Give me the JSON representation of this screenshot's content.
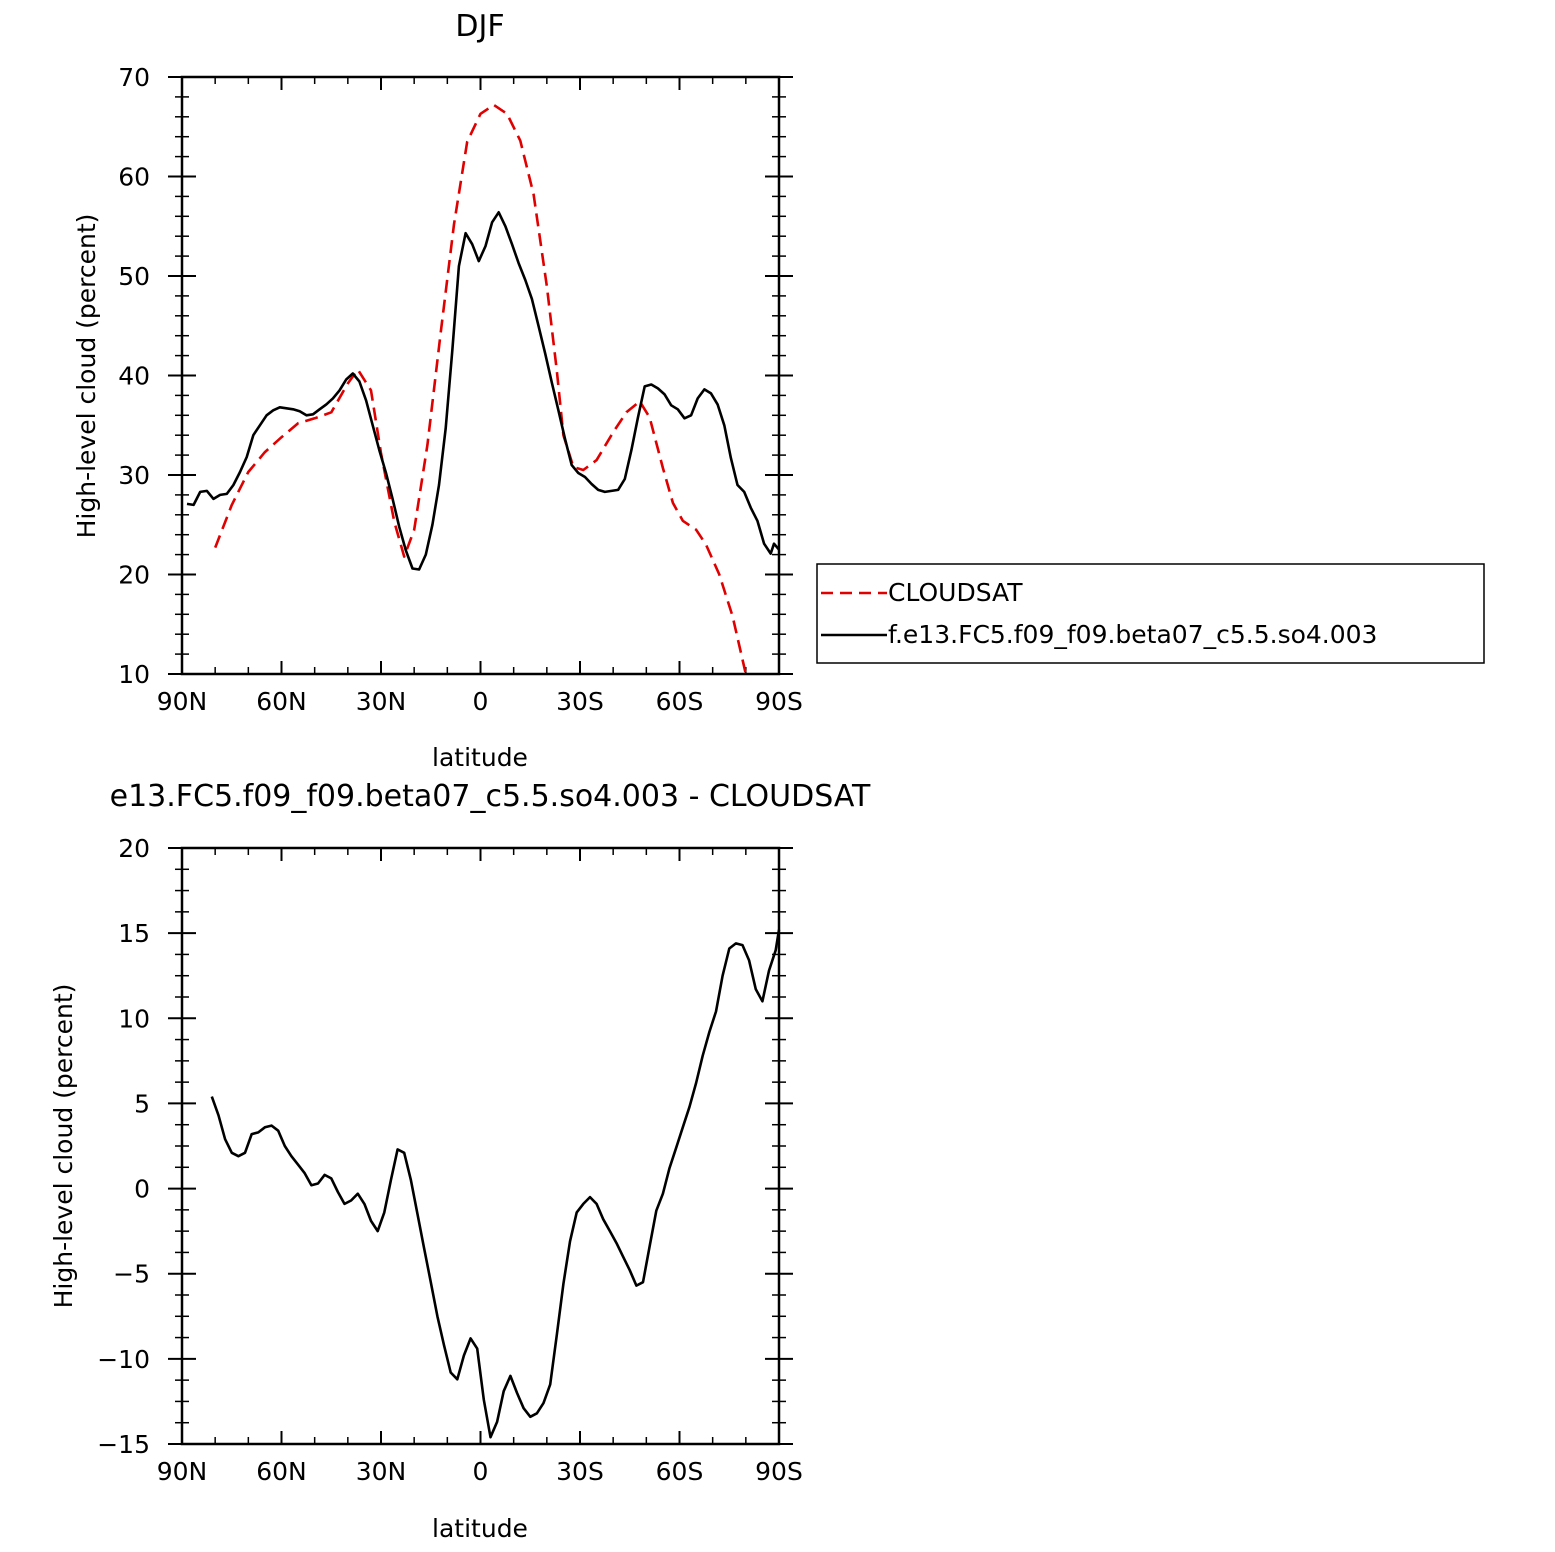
{
  "chart_data": [
    {
      "type": "line",
      "title": "DJF",
      "xlabel": "latitude",
      "ylabel": "High-level cloud (percent)",
      "xlim": [
        -90,
        90
      ],
      "ylim": [
        10,
        70
      ],
      "x_ticks": [
        -90,
        -60,
        -30,
        0,
        30,
        60,
        90
      ],
      "x_tick_labels": [
        "90N",
        "60N",
        "30N",
        "0",
        "30S",
        "60S",
        "90S"
      ],
      "y_ticks": [
        10,
        20,
        30,
        40,
        50,
        60,
        70
      ],
      "y_tick_labels": [
        "10",
        "20",
        "30",
        "40",
        "50",
        "60",
        "70"
      ],
      "grid": false,
      "legend_position": "right",
      "series": [
        {
          "name": "CLOUDSAT",
          "color": "#e00000",
          "dash": "dashed",
          "points": [
            [
              -80,
              22.7
            ],
            [
              -75,
              27
            ],
            [
              -70,
              30.3
            ],
            [
              -65,
              32.3
            ],
            [
              -60,
              33.8
            ],
            [
              -55,
              35.2
            ],
            [
              -50,
              35.7
            ],
            [
              -45,
              36.3
            ],
            [
              -40,
              39.2
            ],
            [
              -37,
              40.6
            ],
            [
              -33,
              38.5
            ],
            [
              -30,
              32.2
            ],
            [
              -26,
              25.3
            ],
            [
              -23,
              21.8
            ],
            [
              -20,
              24.5
            ],
            [
              -16,
              33
            ],
            [
              -12,
              44.3
            ],
            [
              -8,
              55.2
            ],
            [
              -4,
              63.5
            ],
            [
              0,
              66.3
            ],
            [
              4,
              67.2
            ],
            [
              8,
              66.3
            ],
            [
              12,
              63.6
            ],
            [
              16,
              58.2
            ],
            [
              20,
              49
            ],
            [
              23,
              40.5
            ],
            [
              25,
              34
            ],
            [
              28,
              30.8
            ],
            [
              31,
              30.5
            ],
            [
              35,
              31.5
            ],
            [
              40,
              34.3
            ],
            [
              44,
              36.3
            ],
            [
              48,
              37.4
            ],
            [
              51,
              35.8
            ],
            [
              55,
              30.7
            ],
            [
              58,
              27.2
            ],
            [
              61,
              25.4
            ],
            [
              65,
              24.5
            ],
            [
              68,
              23
            ],
            [
              72,
              20
            ],
            [
              76,
              15.8
            ],
            [
              80,
              10
            ]
          ]
        },
        {
          "name": "f.e13.FC5.f09_f09.beta07_c5.5.so4.003",
          "color": "#000000",
          "dash": "solid",
          "points": [
            [
              -88.5,
              27.1
            ],
            [
              -86.5,
              27
            ],
            [
              -84.5,
              28.3
            ],
            [
              -82.5,
              28.4
            ],
            [
              -80.5,
              27.6
            ],
            [
              -78.5,
              28
            ],
            [
              -76.5,
              28.1
            ],
            [
              -74.5,
              29
            ],
            [
              -72.5,
              30.3
            ],
            [
              -70.5,
              31.8
            ],
            [
              -68.5,
              34
            ],
            [
              -66.5,
              35
            ],
            [
              -64.5,
              36
            ],
            [
              -62.5,
              36.5
            ],
            [
              -60.5,
              36.8
            ],
            [
              -58.5,
              36.7
            ],
            [
              -56.5,
              36.6
            ],
            [
              -54.5,
              36.4
            ],
            [
              -52.5,
              36
            ],
            [
              -50.5,
              36.1
            ],
            [
              -48.5,
              36.6
            ],
            [
              -46.5,
              37.1
            ],
            [
              -44.5,
              37.7
            ],
            [
              -42.5,
              38.5
            ],
            [
              -40.5,
              39.6
            ],
            [
              -38.5,
              40.2
            ],
            [
              -36.5,
              39.4
            ],
            [
              -34.5,
              37.5
            ],
            [
              -32.5,
              35
            ],
            [
              -30.5,
              32.5
            ],
            [
              -28.5,
              30.2
            ],
            [
              -26.5,
              27.6
            ],
            [
              -24.5,
              24.8
            ],
            [
              -22.5,
              22.4
            ],
            [
              -20.5,
              20.6
            ],
            [
              -18.5,
              20.5
            ],
            [
              -16.5,
              22
            ],
            [
              -14.5,
              25
            ],
            [
              -12.5,
              29
            ],
            [
              -10.5,
              34.7
            ],
            [
              -8.5,
              42.5
            ],
            [
              -6.5,
              51
            ],
            [
              -4.5,
              54.3
            ],
            [
              -2.5,
              53.2
            ],
            [
              -0.5,
              51.5
            ],
            [
              1.5,
              53
            ],
            [
              3.5,
              55.4
            ],
            [
              5.5,
              56.4
            ],
            [
              7.5,
              55
            ],
            [
              9.5,
              53.2
            ],
            [
              11.5,
              51.3
            ],
            [
              13.5,
              49.6
            ],
            [
              15.5,
              47.7
            ],
            [
              17.5,
              45
            ],
            [
              19.5,
              42.2
            ],
            [
              21.5,
              39.3
            ],
            [
              23.5,
              36.5
            ],
            [
              25.5,
              33.6
            ],
            [
              27.5,
              31
            ],
            [
              29.5,
              30.2
            ],
            [
              31.5,
              29.8
            ],
            [
              33.5,
              29.1
            ],
            [
              35.5,
              28.5
            ],
            [
              37.5,
              28.3
            ],
            [
              39.5,
              28.4
            ],
            [
              41.5,
              28.5
            ],
            [
              43.5,
              29.6
            ],
            [
              45.5,
              32.5
            ],
            [
              47.5,
              35.8
            ],
            [
              49.5,
              38.9
            ],
            [
              51.5,
              39.1
            ],
            [
              53.5,
              38.7
            ],
            [
              55.5,
              38.1
            ],
            [
              57.5,
              37
            ],
            [
              59.5,
              36.6
            ],
            [
              61.5,
              35.7
            ],
            [
              63.5,
              36
            ],
            [
              65.5,
              37.7
            ],
            [
              67.5,
              38.6
            ],
            [
              69.5,
              38.2
            ],
            [
              71.5,
              37.1
            ],
            [
              73.5,
              35
            ],
            [
              75.5,
              31.7
            ],
            [
              77.5,
              29
            ],
            [
              79.5,
              28.3
            ],
            [
              81.5,
              26.7
            ],
            [
              83.5,
              25.4
            ],
            [
              85.5,
              23.1
            ],
            [
              87.5,
              22.1
            ],
            [
              88.5,
              23.1
            ],
            [
              90,
              22.5
            ]
          ]
        }
      ]
    },
    {
      "type": "line",
      "title": "e13.FC5.f09_f09.beta07_c5.5.so4.003 - CLOUDSAT",
      "xlabel": "latitude",
      "ylabel": "High-level cloud (percent)",
      "xlim": [
        -90,
        90
      ],
      "ylim": [
        -15,
        20
      ],
      "x_ticks": [
        -90,
        -60,
        -30,
        0,
        30,
        60,
        90
      ],
      "x_tick_labels": [
        "90N",
        "60N",
        "30N",
        "0",
        "30S",
        "60S",
        "90S"
      ],
      "y_ticks": [
        -15,
        -10,
        -5,
        0,
        5,
        10,
        15,
        20
      ],
      "y_tick_labels": [
        "−15",
        "−10",
        "−5",
        "0",
        "5",
        "10",
        "15",
        "20"
      ],
      "grid": false,
      "series": [
        {
          "color": "#000000",
          "dash": "solid",
          "points": [
            [
              -81,
              5.4
            ],
            [
              -79,
              4.3
            ],
            [
              -77,
              2.9
            ],
            [
              -75,
              2.1
            ],
            [
              -73,
              1.9
            ],
            [
              -71,
              2.1
            ],
            [
              -69,
              3.2
            ],
            [
              -67,
              3.3
            ],
            [
              -65,
              3.6
            ],
            [
              -63,
              3.7
            ],
            [
              -61,
              3.4
            ],
            [
              -59,
              2.5
            ],
            [
              -57,
              1.9
            ],
            [
              -55,
              1.4
            ],
            [
              -53,
              0.9
            ],
            [
              -51,
              0.2
            ],
            [
              -49,
              0.3
            ],
            [
              -47,
              0.8
            ],
            [
              -45,
              0.6
            ],
            [
              -43,
              -0.2
            ],
            [
              -41,
              -0.9
            ],
            [
              -39,
              -0.7
            ],
            [
              -37,
              -0.3
            ],
            [
              -35,
              -0.9
            ],
            [
              -33,
              -1.9
            ],
            [
              -31,
              -2.5
            ],
            [
              -29,
              -1.4
            ],
            [
              -27,
              0.5
            ],
            [
              -25,
              2.3
            ],
            [
              -23,
              2.1
            ],
            [
              -21,
              0.5
            ],
            [
              -19,
              -1.5
            ],
            [
              -17,
              -3.5
            ],
            [
              -15,
              -5.5
            ],
            [
              -13,
              -7.5
            ],
            [
              -11,
              -9.2
            ],
            [
              -9,
              -10.8
            ],
            [
              -7,
              -11.2
            ],
            [
              -5,
              -9.8
            ],
            [
              -3,
              -8.8
            ],
            [
              -1,
              -9.4
            ],
            [
              1,
              -12.4
            ],
            [
              3,
              -14.6
            ],
            [
              5,
              -13.7
            ],
            [
              7,
              -11.9
            ],
            [
              9,
              -11
            ],
            [
              11,
              -12
            ],
            [
              13,
              -12.9
            ],
            [
              15,
              -13.4
            ],
            [
              17,
              -13.2
            ],
            [
              19,
              -12.6
            ],
            [
              21,
              -11.5
            ],
            [
              23,
              -8.6
            ],
            [
              25,
              -5.6
            ],
            [
              27,
              -3.1
            ],
            [
              29,
              -1.4
            ],
            [
              31,
              -0.9
            ],
            [
              33,
              -0.5
            ],
            [
              35,
              -0.9
            ],
            [
              37,
              -1.8
            ],
            [
              39,
              -2.5
            ],
            [
              41,
              -3.2
            ],
            [
              43,
              -4
            ],
            [
              45,
              -4.8
            ],
            [
              47,
              -5.7
            ],
            [
              49,
              -5.5
            ],
            [
              51,
              -3.4
            ],
            [
              53,
              -1.3
            ],
            [
              55,
              -0.3
            ],
            [
              57,
              1.2
            ],
            [
              59,
              2.4
            ],
            [
              61,
              3.6
            ],
            [
              63,
              4.8
            ],
            [
              65,
              6.2
            ],
            [
              67,
              7.8
            ],
            [
              69,
              9.2
            ],
            [
              71,
              10.4
            ],
            [
              73,
              12.5
            ],
            [
              75,
              14.1
            ],
            [
              77,
              14.4
            ],
            [
              79,
              14.3
            ],
            [
              81,
              13.4
            ],
            [
              83,
              11.7
            ],
            [
              85,
              11
            ],
            [
              87,
              12.8
            ],
            [
              89,
              14
            ],
            [
              90,
              15.2
            ]
          ]
        }
      ]
    }
  ]
}
